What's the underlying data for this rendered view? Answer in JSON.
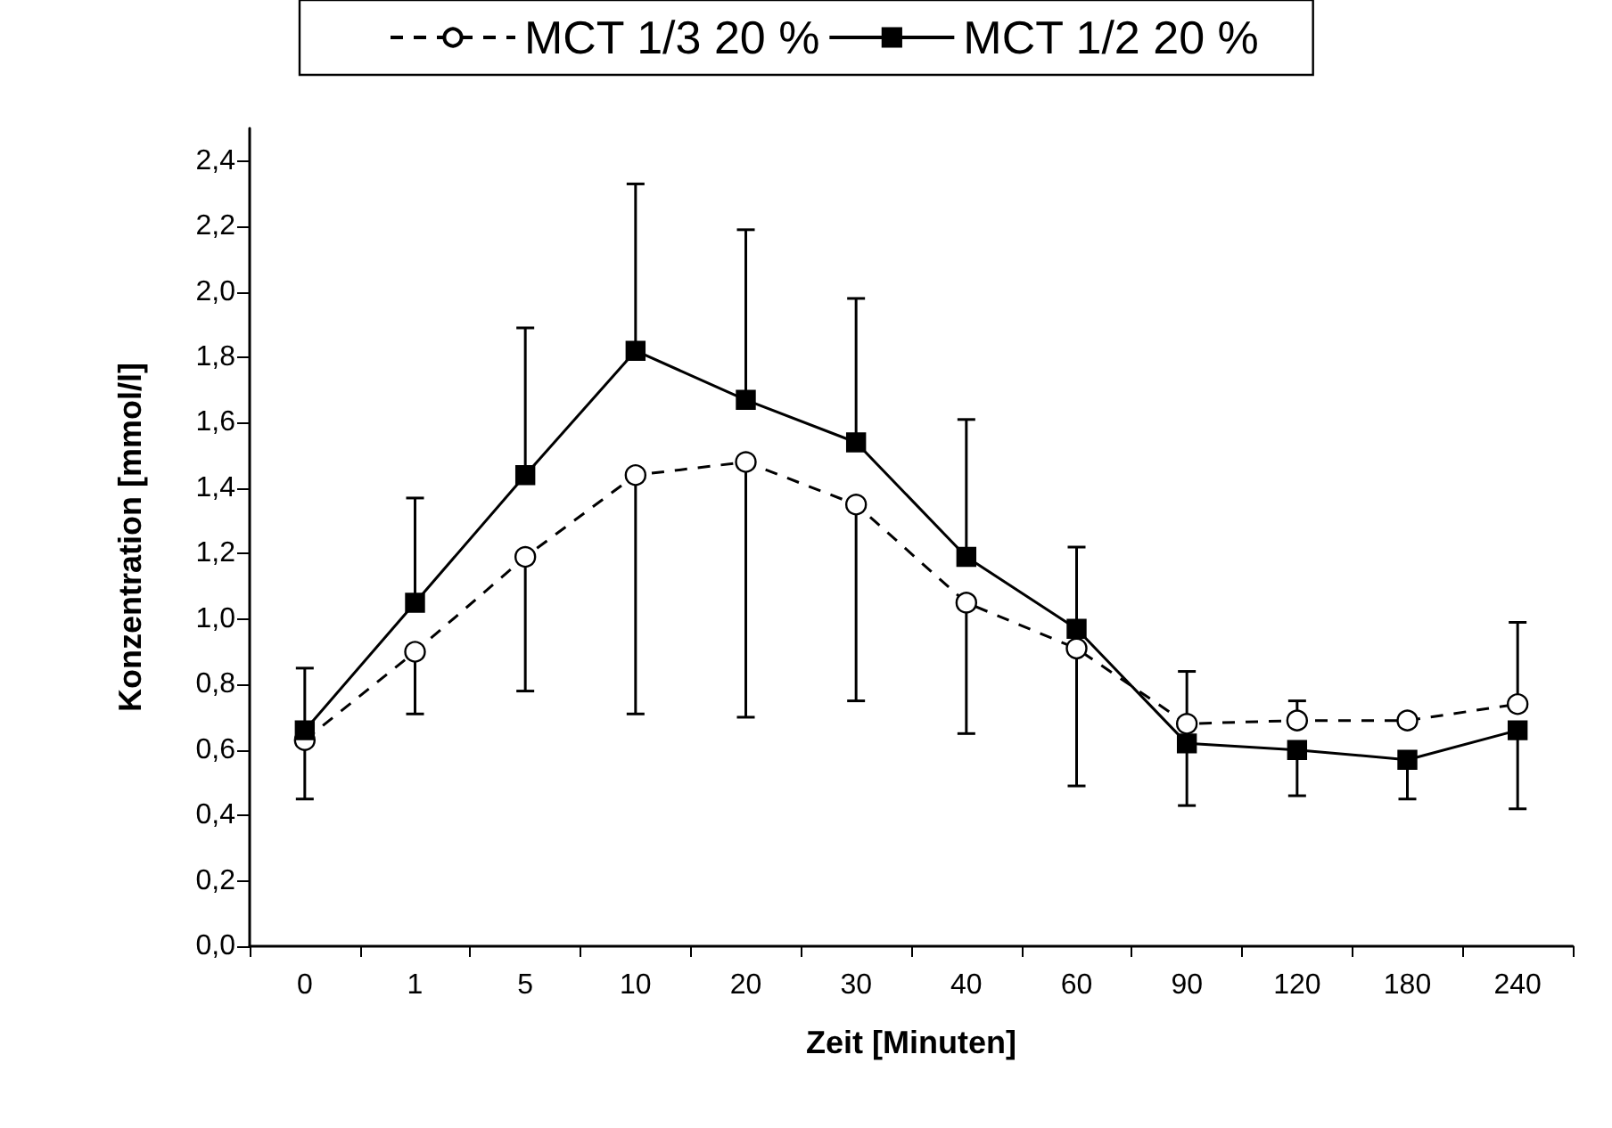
{
  "chart_data": {
    "type": "line",
    "xlabel": "Zeit [Minuten]",
    "ylabel": "Konzentration [mmol/l]",
    "categories": [
      "0",
      "1",
      "5",
      "10",
      "20",
      "30",
      "40",
      "60",
      "90",
      "120",
      "180",
      "240"
    ],
    "series": [
      {
        "name": "MCT 1/3 20 %",
        "color": "#000000",
        "line_style": "dashed",
        "marker": "circle",
        "values": [
          0.63,
          0.9,
          1.19,
          1.44,
          1.48,
          1.35,
          1.05,
          0.91,
          0.68,
          0.69,
          0.69,
          0.74
        ],
        "errors": [
          [
            0.45,
            0.63
          ],
          [
            0.71,
            0.9
          ],
          [
            0.78,
            1.19
          ],
          [
            0.71,
            1.44
          ],
          [
            0.7,
            1.48
          ],
          [
            0.75,
            1.35
          ],
          [
            0.65,
            1.05
          ],
          [
            0.49,
            0.91
          ],
          [
            0.68,
            0.84
          ],
          [
            0.69,
            0.75
          ],
          [
            0.69,
            0.7
          ],
          [
            0.74,
            0.99
          ]
        ]
      },
      {
        "name": "MCT 1/2 20 %",
        "color": "#000000",
        "line_style": "solid",
        "marker": "square",
        "values": [
          0.66,
          1.05,
          1.44,
          1.82,
          1.67,
          1.54,
          1.19,
          0.97,
          0.62,
          0.6,
          0.57,
          0.66
        ],
        "errors": [
          [
            0.66,
            0.85
          ],
          [
            1.05,
            1.37
          ],
          [
            1.44,
            1.89
          ],
          [
            1.82,
            2.33
          ],
          [
            1.67,
            2.19
          ],
          [
            1.54,
            1.98
          ],
          [
            1.19,
            1.61
          ],
          [
            0.97,
            1.22
          ],
          [
            0.43,
            0.62
          ],
          [
            0.46,
            0.6
          ],
          [
            0.45,
            0.57
          ],
          [
            0.42,
            0.66
          ]
        ]
      }
    ],
    "ylim": [
      0,
      2.5
    ],
    "yticks": [
      {
        "value": 0,
        "label": "0,0"
      },
      {
        "value": 0.2,
        "label": "0,2"
      },
      {
        "value": 0.4,
        "label": "0,4"
      },
      {
        "value": 0.6,
        "label": "0,6"
      },
      {
        "value": 0.8,
        "label": "0,8"
      },
      {
        "value": 1.0,
        "label": "1,0"
      },
      {
        "value": 1.2,
        "label": "1,2"
      },
      {
        "value": 1.4,
        "label": "1,4"
      },
      {
        "value": 1.6,
        "label": "1,6"
      },
      {
        "value": 1.8,
        "label": "1,8"
      },
      {
        "value": 2.0,
        "label": "2,0"
      },
      {
        "value": 2.2,
        "label": "2,2"
      },
      {
        "value": 2.4,
        "label": "2,4"
      }
    ],
    "grid": false,
    "legend": "top"
  }
}
